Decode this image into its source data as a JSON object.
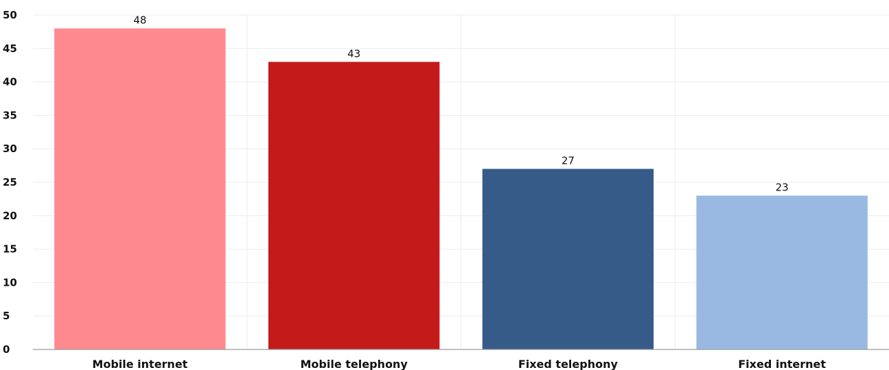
{
  "chart_data": {
    "type": "bar",
    "title": "",
    "xlabel": "",
    "ylabel": "",
    "categories": [
      "Mobile internet",
      "Mobile telephony",
      "Fixed telephony",
      "Fixed internet"
    ],
    "values": [
      48,
      43,
      27,
      23
    ],
    "data_labels": [
      "48",
      "43",
      "27",
      "23"
    ],
    "ylim": [
      0,
      50
    ],
    "y_ticks": [
      0,
      5,
      10,
      15,
      20,
      25,
      30,
      35,
      40,
      45,
      50
    ],
    "grid": true,
    "legend": "none",
    "colors": [
      "#ff8a8e",
      "#c41a1a",
      "#365b88",
      "#99b9e3"
    ]
  }
}
